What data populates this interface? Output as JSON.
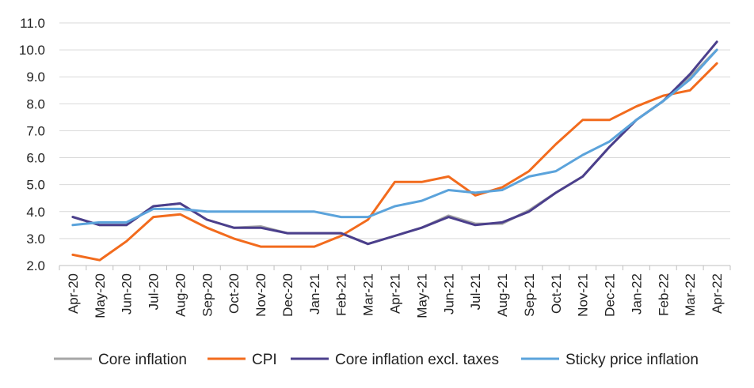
{
  "chart_data": {
    "type": "line",
    "categories": [
      "Apr-20",
      "May-20",
      "Jun-20",
      "Jul-20",
      "Aug-20",
      "Sep-20",
      "Oct-20",
      "Nov-20",
      "Dec-20",
      "Jan-21",
      "Feb-21",
      "Mar-21",
      "Apr-21",
      "May-21",
      "Jun-21",
      "Jul-21",
      "Aug-21",
      "Sep-21",
      "Oct-21",
      "Nov-21",
      "Dec-21",
      "Jan-22",
      "Feb-22",
      "Mar-22",
      "Apr-22"
    ],
    "ylim": [
      2.0,
      11.0
    ],
    "yticks": [
      "2.0",
      "3.0",
      "4.0",
      "5.0",
      "6.0",
      "7.0",
      "8.0",
      "9.0",
      "10.0",
      "11.0"
    ],
    "grid": "horizontal",
    "legend_position": "bottom",
    "series": [
      {
        "name": "Core inflation",
        "color": "#a6a6a6",
        "values": [
          3.8,
          3.5,
          3.5,
          4.2,
          4.3,
          3.7,
          3.4,
          3.45,
          3.2,
          3.2,
          3.2,
          2.8,
          3.1,
          3.4,
          3.85,
          3.55,
          3.55,
          4.05,
          4.7,
          5.3,
          6.4,
          7.4,
          8.1,
          9.0,
          10.0
        ]
      },
      {
        "name": "CPI",
        "color": "#f26b1d",
        "values": [
          2.4,
          2.2,
          2.9,
          3.8,
          3.9,
          3.4,
          3.0,
          2.7,
          2.7,
          2.7,
          3.1,
          3.7,
          5.1,
          5.1,
          5.3,
          4.6,
          4.9,
          5.5,
          6.5,
          7.4,
          7.4,
          7.9,
          8.3,
          8.5,
          9.5
        ]
      },
      {
        "name": "Core inflation excl. taxes",
        "color": "#4b3f8c",
        "values": [
          3.8,
          3.5,
          3.5,
          4.2,
          4.3,
          3.7,
          3.4,
          3.4,
          3.2,
          3.2,
          3.2,
          2.8,
          3.1,
          3.4,
          3.8,
          3.5,
          3.6,
          4.0,
          4.7,
          5.3,
          6.4,
          7.4,
          8.1,
          9.1,
          10.3
        ]
      },
      {
        "name": "Sticky price inflation",
        "color": "#5ba3db",
        "values": [
          3.5,
          3.6,
          3.6,
          4.1,
          4.1,
          4.0,
          4.0,
          4.0,
          4.0,
          4.0,
          3.8,
          3.8,
          4.2,
          4.4,
          4.8,
          4.7,
          4.8,
          5.3,
          5.5,
          6.1,
          6.6,
          7.4,
          8.1,
          8.9,
          10.0
        ]
      }
    ]
  }
}
